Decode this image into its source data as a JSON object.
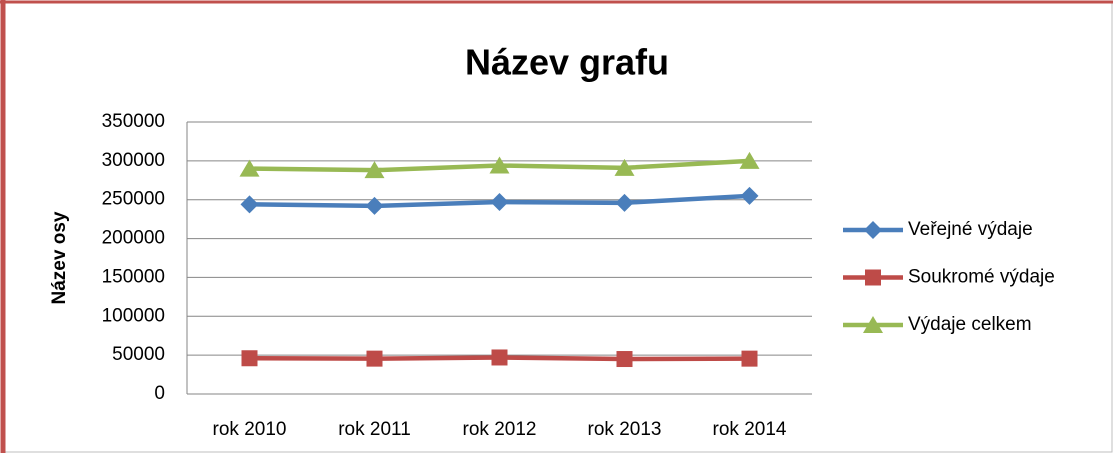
{
  "chart_data": {
    "type": "line",
    "title": "Název grafu",
    "y_label": "Název osy",
    "categories": [
      "rok 2010",
      "rok 2011",
      "rok 2012",
      "rok 2013",
      "rok 2014"
    ],
    "series": [
      {
        "name": "Veřejné výdaje",
        "color": "#4a7ebb",
        "marker": "diamond",
        "values": [
          244000,
          242000,
          247000,
          246000,
          255000
        ]
      },
      {
        "name": "Soukromé výdaje",
        "color": "#be4b48",
        "marker": "square",
        "values": [
          46000,
          45500,
          47000,
          45000,
          45500
        ]
      },
      {
        "name": "Výdaje celkem",
        "color": "#98b954",
        "marker": "triangle",
        "values": [
          290000,
          288000,
          294000,
          291000,
          300000
        ]
      }
    ],
    "ylim": [
      0,
      350000
    ],
    "yticks": [
      0,
      50000,
      100000,
      150000,
      200000,
      250000,
      300000,
      350000
    ],
    "grid": true,
    "legend": "right"
  }
}
